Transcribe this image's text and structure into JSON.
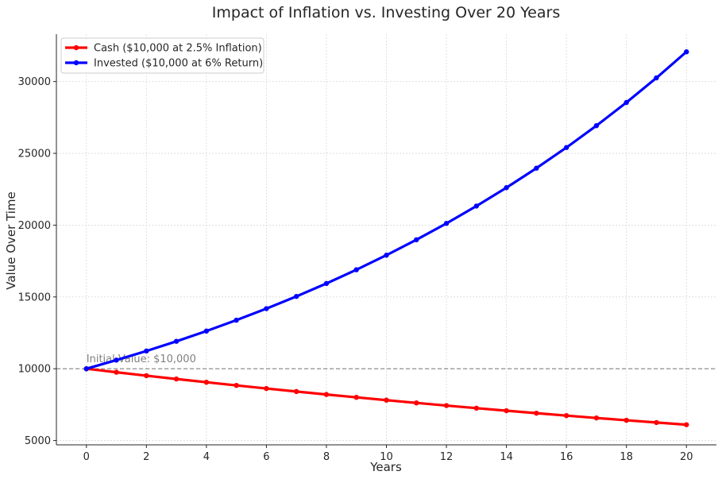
{
  "chart_data": {
    "type": "line",
    "title": "Impact of Inflation vs. Investing Over 20 Years",
    "xlabel": "Years",
    "ylabel": "Value Over Time",
    "xlim": [
      -1,
      21
    ],
    "ylim": [
      4700,
      33300
    ],
    "x_ticks": [
      0,
      2,
      4,
      6,
      8,
      10,
      12,
      14,
      16,
      18,
      20
    ],
    "y_ticks": [
      5000,
      10000,
      15000,
      20000,
      25000,
      30000
    ],
    "grid": true,
    "legend_position": "top-left",
    "x": [
      0,
      1,
      2,
      3,
      4,
      5,
      6,
      7,
      8,
      9,
      10,
      11,
      12,
      13,
      14,
      15,
      16,
      17,
      18,
      19,
      20
    ],
    "series": [
      {
        "name": "Cash ($10,000 at 2.5% Inflation)",
        "color": "#ff0000",
        "values": [
          10000,
          9756,
          9518,
          9286,
          9060,
          8839,
          8623,
          8413,
          8207,
          8007,
          7812,
          7621,
          7436,
          7254,
          7077,
          6905,
          6736,
          6572,
          6412,
          6255,
          6103
        ]
      },
      {
        "name": "Invested ($10,000 at 6% Return)",
        "color": "#0000ff",
        "values": [
          10000,
          10600,
          11236,
          11910,
          12625,
          13382,
          14185,
          15036,
          15938,
          16895,
          17908,
          18983,
          20122,
          21329,
          22609,
          23966,
          25404,
          26928,
          28543,
          30256,
          32071
        ]
      }
    ],
    "reference_line": {
      "y": 10000,
      "label": "Initial Value: $10,000",
      "color": "#808080",
      "style": "dashed"
    }
  }
}
